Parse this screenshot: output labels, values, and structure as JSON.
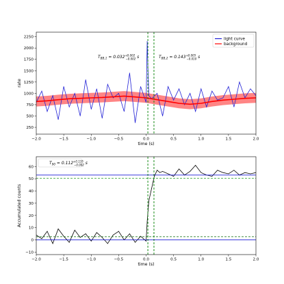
{
  "chart_data": [
    {
      "type": "line",
      "panel": "light-curve",
      "xlabel": "time (s)",
      "ylabel": "rate",
      "xlim": [
        -2.0,
        2.0
      ],
      "ylim": [
        100,
        2350
      ],
      "x_ticks": [
        "−2.0",
        "−1.5",
        "−1.0",
        "−0.5",
        "0.0",
        "0.5",
        "1.0",
        "1.5",
        "2.0"
      ],
      "y_ticks": [
        "250",
        "500",
        "750",
        "1000",
        "1250",
        "1500",
        "1750",
        "2000",
        "2250"
      ],
      "grid": false,
      "legend": {
        "position": "top-right",
        "entries": [
          {
            "name": "light curve",
            "color": "#1f1fd6"
          },
          {
            "name": "background",
            "color": "#ff0000"
          }
        ]
      },
      "annotations": {
        "t_bb_1": "T_BB,1 = 0.032^{+0.002}_{−0.002} s",
        "t_bb_2": "T_BB,2 = 0.143^{+0.005}_{−0.010} s"
      },
      "vlines": [
        {
          "x": 0.032,
          "color": "#008000",
          "style": "dashed"
        },
        {
          "x": 0.143,
          "color": "#008000",
          "style": "dashed"
        }
      ],
      "series": [
        {
          "name": "light curve",
          "color": "#1f1fd6",
          "x": [
            -2.0,
            -1.9,
            -1.8,
            -1.7,
            -1.6,
            -1.5,
            -1.4,
            -1.3,
            -1.2,
            -1.1,
            -1.0,
            -0.9,
            -0.8,
            -0.7,
            -0.6,
            -0.5,
            -0.4,
            -0.3,
            -0.2,
            -0.1,
            0.0,
            0.02,
            0.03,
            0.05,
            0.1,
            0.2,
            0.3,
            0.4,
            0.5,
            0.6,
            0.7,
            0.8,
            0.9,
            1.0,
            1.1,
            1.2,
            1.3,
            1.4,
            1.5,
            1.6,
            1.7,
            1.8,
            1.9,
            2.0
          ],
          "y": [
            800,
            1050,
            600,
            950,
            420,
            1150,
            700,
            1000,
            500,
            1300,
            650,
            1100,
            450,
            1200,
            900,
            1000,
            600,
            1450,
            350,
            1150,
            800,
            2150,
            1700,
            950,
            880,
            1000,
            500,
            1150,
            850,
            1100,
            750,
            1000,
            600,
            1100,
            700,
            1050,
            850,
            900,
            1150,
            700,
            1250,
            900,
            1100,
            950
          ]
        },
        {
          "name": "background",
          "color": "#ff0000",
          "x": [
            -2.0,
            -1.8,
            -1.6,
            -1.4,
            -1.2,
            -1.0,
            -0.8,
            -0.6,
            -0.4,
            -0.2,
            0.0,
            0.2,
            0.4,
            0.6,
            0.8,
            1.0,
            1.2,
            1.4,
            1.6,
            1.8,
            2.0
          ],
          "y": [
            820,
            835,
            860,
            880,
            890,
            900,
            910,
            925,
            940,
            920,
            900,
            860,
            820,
            780,
            760,
            780,
            820,
            850,
            870,
            890,
            900
          ]
        }
      ]
    },
    {
      "type": "line",
      "panel": "accumulated-counts",
      "xlabel": "time (s)",
      "ylabel": "Accumulated counts",
      "xlim": [
        -2.0,
        2.0
      ],
      "ylim": [
        -12,
        68
      ],
      "x_ticks": [
        "−2.0",
        "−1.5",
        "−1.0",
        "−0.5",
        "0.0",
        "0.5",
        "1.0",
        "1.5",
        "2.0"
      ],
      "y_ticks": [
        "−10",
        "0",
        "10",
        "20",
        "30",
        "40",
        "50",
        "60"
      ],
      "grid": false,
      "legend": {
        "position": "top-left",
        "entries": [
          {
            "name": "T_90 = 0.112^{+0.135}_{−0.002} s",
            "color": "#ffffff"
          }
        ]
      },
      "hlines": [
        {
          "y": 0,
          "color": "#1f1fd6",
          "style": "solid"
        },
        {
          "y": 53,
          "color": "#1f1fd6",
          "style": "solid"
        },
        {
          "y": 2.6,
          "color": "#006400",
          "style": "dashed"
        },
        {
          "y": 50.4,
          "color": "#44aa44",
          "style": "dashed"
        }
      ],
      "vlines": [
        {
          "x": 0.032,
          "color": "#008000",
          "style": "dashed"
        },
        {
          "x": 0.143,
          "color": "#008000",
          "style": "dashed"
        }
      ],
      "series": [
        {
          "name": "accumulated counts",
          "color": "#000000",
          "x": [
            -2.0,
            -1.9,
            -1.8,
            -1.7,
            -1.6,
            -1.5,
            -1.4,
            -1.3,
            -1.2,
            -1.1,
            -1.0,
            -0.9,
            -0.8,
            -0.7,
            -0.6,
            -0.5,
            -0.4,
            -0.3,
            -0.2,
            -0.1,
            0.0,
            0.02,
            0.05,
            0.1,
            0.15,
            0.2,
            0.25,
            0.3,
            0.4,
            0.5,
            0.6,
            0.7,
            0.8,
            0.9,
            1.0,
            1.1,
            1.2,
            1.3,
            1.4,
            1.5,
            1.6,
            1.7,
            1.8,
            1.9,
            2.0
          ],
          "y": [
            4,
            1,
            7,
            -3,
            9,
            3,
            -2,
            8,
            2,
            5,
            -1,
            6,
            2,
            -3,
            4,
            7,
            0,
            5,
            -2,
            3,
            -1,
            15,
            32,
            42,
            52,
            57,
            55,
            56,
            54,
            52,
            58,
            53,
            56,
            61,
            55,
            53,
            52,
            57,
            55,
            54,
            57,
            53,
            55,
            54,
            55
          ]
        }
      ]
    }
  ]
}
